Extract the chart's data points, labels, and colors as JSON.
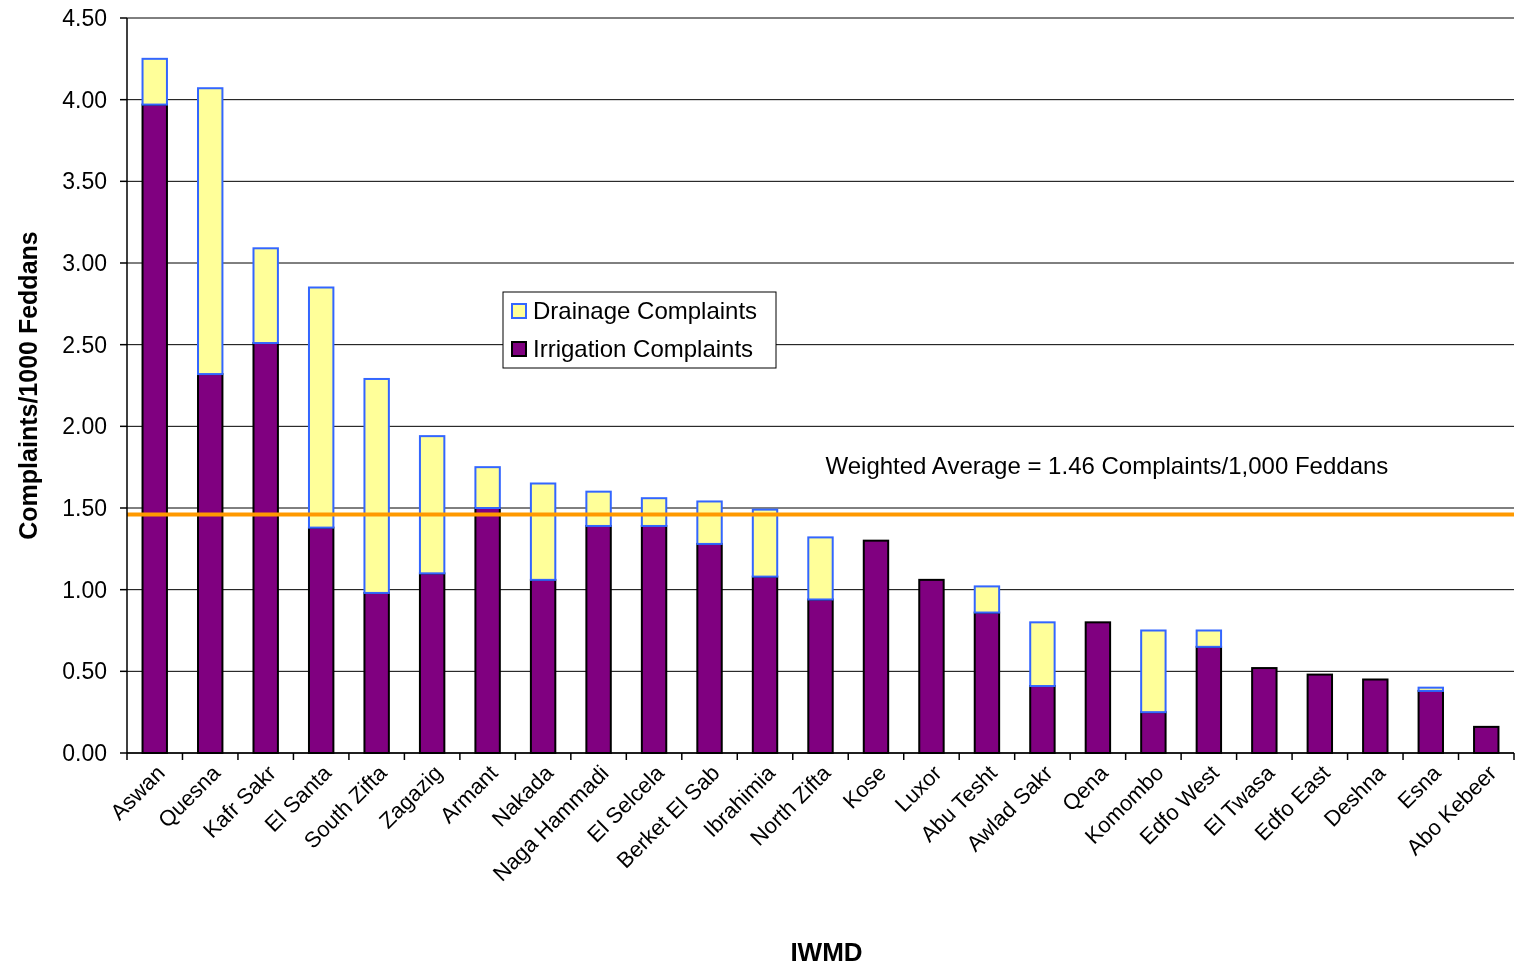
{
  "chart_data": {
    "type": "bar",
    "stacked": true,
    "categories": [
      "Aswan",
      "Quesna",
      "Kafr Sakr",
      "El Santa",
      "South Zifta",
      "Zagazig",
      "Armant",
      "Nakada",
      "Naga Hammadi",
      "El Selcela",
      "Berket El Sab",
      "Ibrahimia",
      "North Zifta",
      "Kose",
      "Luxor",
      "Abu Tesht",
      "Awlad Sakr",
      "Qena",
      "Komombo",
      "Edfo West",
      "El Twasa",
      "Edfo East",
      "Deshna",
      "Esna",
      "Abo Kebeer"
    ],
    "series": [
      {
        "name": "Irrigation Complaints",
        "color": "#800080",
        "values": [
          3.97,
          2.32,
          2.51,
          1.38,
          0.98,
          1.1,
          1.5,
          1.06,
          1.39,
          1.39,
          1.28,
          1.08,
          0.94,
          1.3,
          1.06,
          0.86,
          0.41,
          0.8,
          0.25,
          0.65,
          0.52,
          0.48,
          0.45,
          0.38,
          0.16
        ]
      },
      {
        "name": "Drainage Complaints",
        "color": "#ffff99",
        "values": [
          0.28,
          1.75,
          0.58,
          1.47,
          1.31,
          0.84,
          0.25,
          0.59,
          0.21,
          0.17,
          0.26,
          0.41,
          0.38,
          null,
          null,
          0.16,
          0.39,
          null,
          0.5,
          0.1,
          null,
          null,
          null,
          0.02,
          null
        ]
      }
    ],
    "ylim": [
      0,
      4.5
    ],
    "yticks": [
      {
        "value": 0,
        "label": "0.00"
      },
      {
        "value": 0.5,
        "label": "0.50"
      },
      {
        "value": 1,
        "label": "1.00"
      },
      {
        "value": 1.5,
        "label": "1.50"
      },
      {
        "value": 2,
        "label": "2.00"
      },
      {
        "value": 2.5,
        "label": "2.50"
      },
      {
        "value": 3,
        "label": "3.00"
      },
      {
        "value": 3.5,
        "label": "3.50"
      },
      {
        "value": 4,
        "label": "4.00"
      },
      {
        "value": 4.5,
        "label": "4.50"
      }
    ],
    "ylabel": "Complaints/1000 Feddans",
    "xlabel": "IWMD",
    "grid": "y",
    "legend": "top left",
    "ref_lines": [
      {
        "axis": "y",
        "value": 1.46,
        "label": "Weighted Average = 1.46 Complaints/1,000 Feddans",
        "color": "#ff9900"
      }
    ]
  }
}
